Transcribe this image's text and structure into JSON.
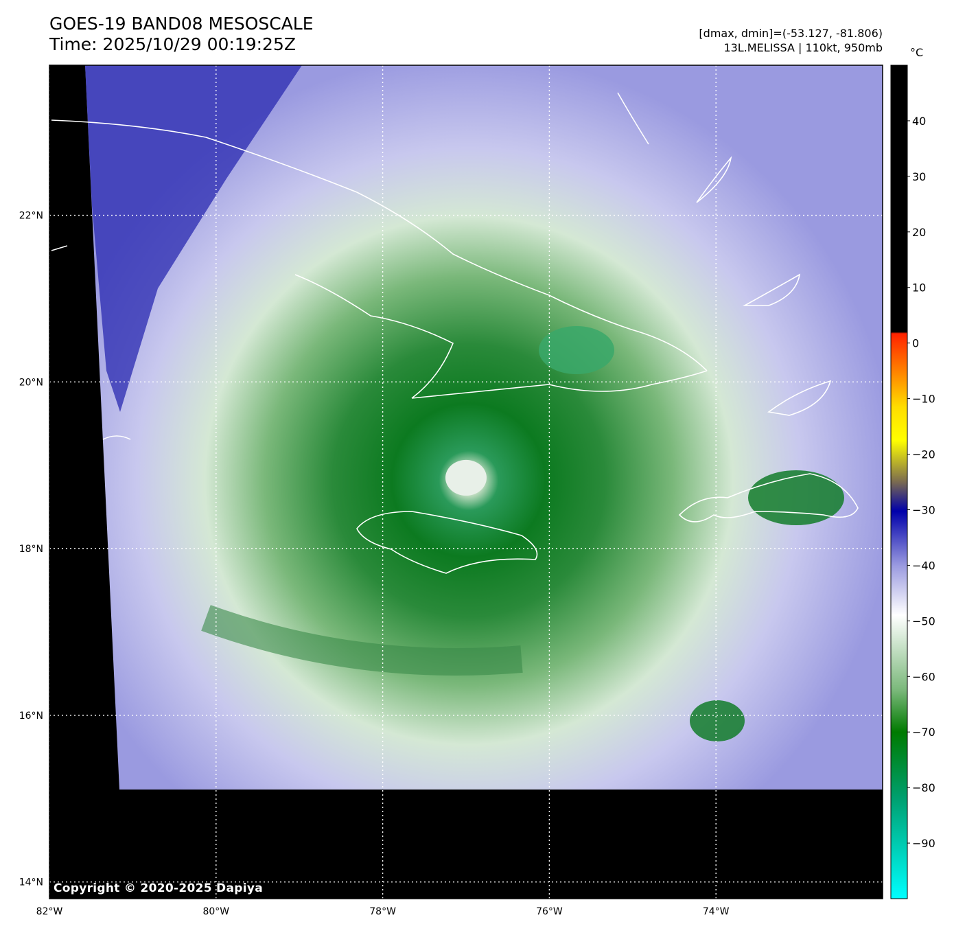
{
  "header": {
    "title": "GOES-19 BAND08 MESOSCALE",
    "time": "Time: 2025/10/29 00:19:25Z",
    "range": "[dmax, dmin]=(-53.127, -81.806)",
    "storm": "13L.MELISSA | 110kt, 950mb"
  },
  "colorbar": {
    "unit": "°C",
    "ticks": [
      "40",
      "30",
      "20",
      "10",
      "0",
      "−10",
      "−20",
      "−30",
      "−40",
      "−50",
      "−60",
      "−70",
      "−80",
      "−90"
    ],
    "tick_values": [
      40,
      30,
      20,
      10,
      0,
      -10,
      -20,
      -30,
      -40,
      -50,
      -60,
      -70,
      -80,
      -90
    ],
    "range": [
      -100,
      50
    ],
    "colors": {
      "warm": "#000000",
      "red": "#ff2200",
      "yellow": "#ffff00",
      "navy": "#0000aa",
      "white": "#ffffff",
      "green": "#007a00",
      "cyan": "#00ffff"
    }
  },
  "map": {
    "lat_labels": [
      "22°N",
      "20°N",
      "18°N",
      "16°N",
      "14°N"
    ],
    "lat_values": [
      22,
      20,
      18,
      16,
      14
    ],
    "lon_labels": [
      "82°W",
      "80°W",
      "78°W",
      "76°W",
      "74°W"
    ],
    "lon_values": [
      -82,
      -80,
      -78,
      -76,
      -74
    ],
    "extent": {
      "lon": [
        -82,
        -72
      ],
      "lat": [
        13.8,
        23.8
      ]
    },
    "eye": {
      "lon": -77.0,
      "lat": 18.85
    },
    "copyright": "Copyright © 2020-2025 Dapiya"
  }
}
